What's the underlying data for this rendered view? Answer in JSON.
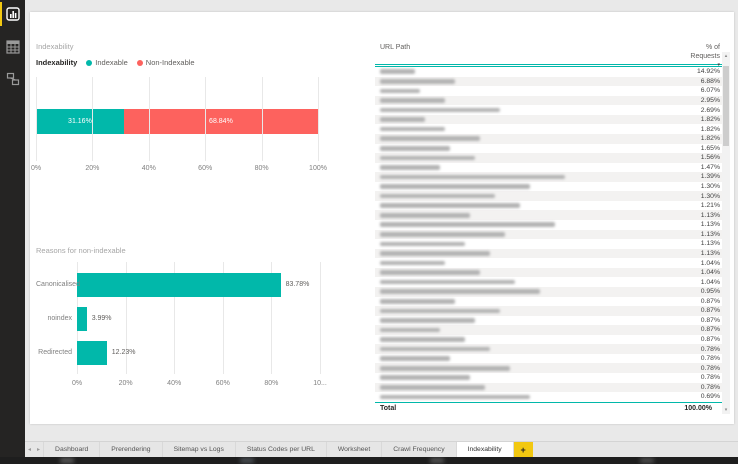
{
  "colors": {
    "teal": "#01b8aa",
    "red": "#fd625e",
    "yellow": "#f2c811"
  },
  "icons": {
    "sort_desc": "▾",
    "nav_left": "◂",
    "nav_right": "▸",
    "scroll_up": "▴",
    "scroll_down": "▾",
    "add": "+"
  },
  "sidebar": {
    "views": [
      {
        "name": "report-view-icon",
        "active": true
      },
      {
        "name": "data-view-icon",
        "active": false
      },
      {
        "name": "model-view-icon",
        "active": false
      }
    ]
  },
  "chart_data": [
    {
      "type": "bar",
      "orientation": "horizontal-stacked",
      "title": "Indexability",
      "legend_title": "Indexability",
      "series": [
        {
          "name": "Indexable",
          "value": 31.16,
          "label": "31.16%",
          "color": "#01b8aa"
        },
        {
          "name": "Non-Indexable",
          "value": 68.84,
          "label": "68.84%",
          "color": "#fd625e"
        }
      ],
      "x_ticks": [
        "0%",
        "20%",
        "40%",
        "60%",
        "80%",
        "100%"
      ],
      "xlim": [
        0,
        100
      ],
      "grid": true,
      "legend_position": "top"
    },
    {
      "type": "bar",
      "orientation": "horizontal",
      "title": "Reasons for non-indexable",
      "categories": [
        "Canonicalised",
        "noindex",
        "Redirected"
      ],
      "values": [
        83.78,
        3.99,
        12.23
      ],
      "labels": [
        "83.78%",
        "3.99%",
        "12.23%"
      ],
      "bar_color": "#01b8aa",
      "x_ticks": [
        "0%",
        "20%",
        "40%",
        "60%",
        "80%",
        "10..."
      ],
      "xlim": [
        0,
        100
      ],
      "grid": true
    }
  ],
  "table": {
    "col1": "URL Path",
    "col2": "% of Requests",
    "sort": "descending",
    "redacted_note": "URL path values are blurred in source image",
    "rows": [
      {
        "pct": "14.92%",
        "w": 35
      },
      {
        "pct": "6.88%",
        "w": 75
      },
      {
        "pct": "6.07%",
        "w": 40
      },
      {
        "pct": "2.95%",
        "w": 65
      },
      {
        "pct": "2.69%",
        "w": 120
      },
      {
        "pct": "1.82%",
        "w": 45
      },
      {
        "pct": "1.82%",
        "w": 65
      },
      {
        "pct": "1.82%",
        "w": 100
      },
      {
        "pct": "1.65%",
        "w": 70
      },
      {
        "pct": "1.56%",
        "w": 95
      },
      {
        "pct": "1.47%",
        "w": 60
      },
      {
        "pct": "1.39%",
        "w": 185
      },
      {
        "pct": "1.30%",
        "w": 150
      },
      {
        "pct": "1.30%",
        "w": 115
      },
      {
        "pct": "1.21%",
        "w": 140
      },
      {
        "pct": "1.13%",
        "w": 90
      },
      {
        "pct": "1.13%",
        "w": 175
      },
      {
        "pct": "1.13%",
        "w": 125
      },
      {
        "pct": "1.13%",
        "w": 85
      },
      {
        "pct": "1.13%",
        "w": 110
      },
      {
        "pct": "1.04%",
        "w": 65
      },
      {
        "pct": "1.04%",
        "w": 100
      },
      {
        "pct": "1.04%",
        "w": 135
      },
      {
        "pct": "0.95%",
        "w": 160
      },
      {
        "pct": "0.87%",
        "w": 75
      },
      {
        "pct": "0.87%",
        "w": 120
      },
      {
        "pct": "0.87%",
        "w": 95
      },
      {
        "pct": "0.87%",
        "w": 60
      },
      {
        "pct": "0.87%",
        "w": 85
      },
      {
        "pct": "0.78%",
        "w": 110
      },
      {
        "pct": "0.78%",
        "w": 70
      },
      {
        "pct": "0.78%",
        "w": 130
      },
      {
        "pct": "0.78%",
        "w": 90
      },
      {
        "pct": "0.78%",
        "w": 105
      },
      {
        "pct": "0.69%",
        "w": 150
      }
    ],
    "total_label": "Total",
    "total_value": "100.00%"
  },
  "tabs": {
    "items": [
      "Dashboard",
      "Prerendering",
      "Sitemap vs Logs",
      "Status Codes per URL",
      "Worksheet",
      "Crawl Frequency",
      "Indexability"
    ],
    "active": "Indexability"
  }
}
